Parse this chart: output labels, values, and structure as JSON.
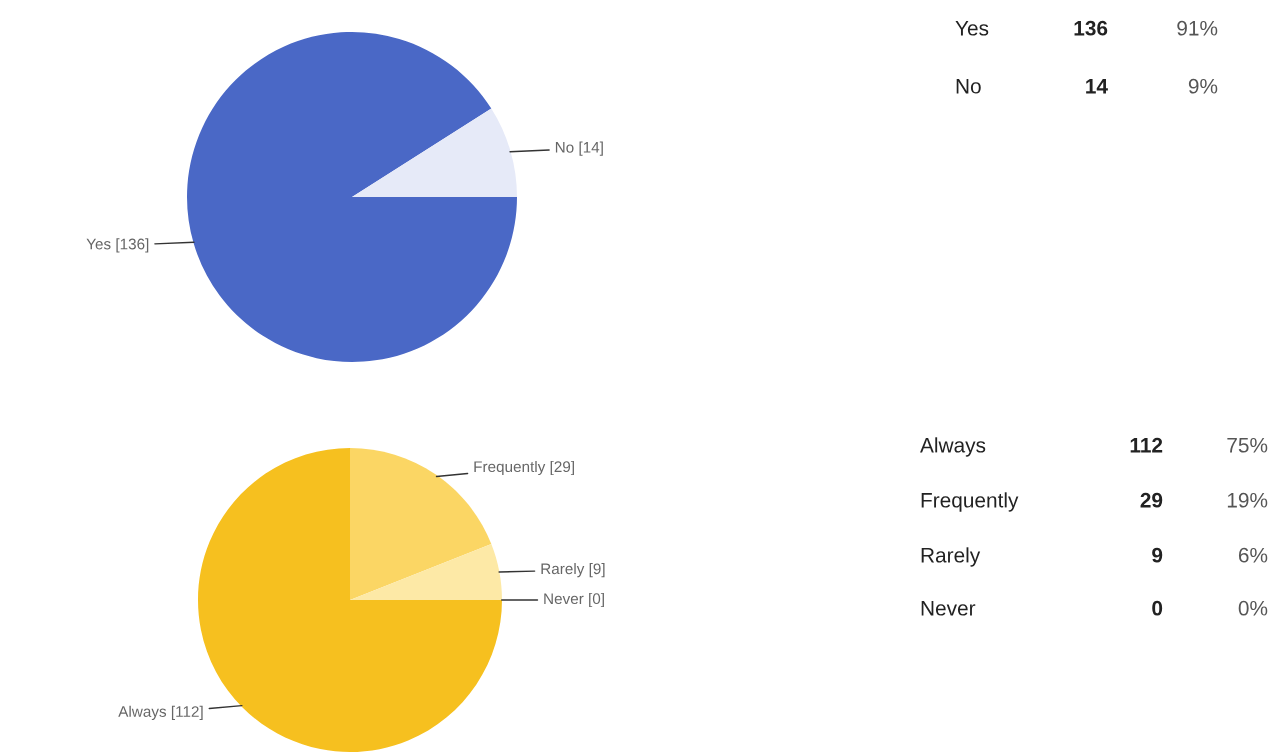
{
  "chart_data": [
    {
      "type": "pie",
      "categories": [
        "Yes [136]",
        "No [14]"
      ],
      "values": [
        91,
        9
      ],
      "colors": [
        "#4a68c6",
        "#e6eaf8"
      ],
      "annotations": [
        "Yes",
        "136",
        "91%",
        "No",
        "14",
        "9%"
      ]
    },
    {
      "type": "pie",
      "categories": [
        "Always [112]",
        "Frequently [29]",
        "Rarely [9]",
        "Never [0]"
      ],
      "values": [
        75,
        19,
        6,
        0
      ],
      "colors": [
        "#f6c01f",
        "#fbd664",
        "#fde9a6",
        "#fef6d8"
      ],
      "annotations": [
        "Always",
        "112",
        "75%",
        "Frequently",
        "29",
        "19%",
        "Rarely",
        "9",
        "6%",
        "Never",
        "0",
        "0%"
      ]
    }
  ]
}
